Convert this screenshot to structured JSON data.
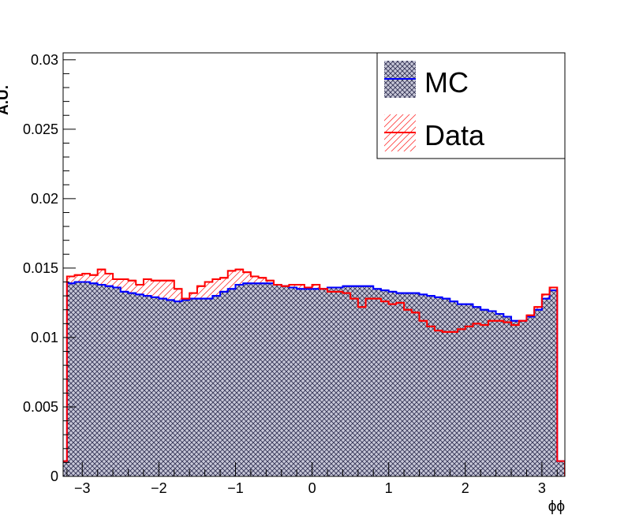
{
  "chart_data": {
    "type": "histogram",
    "xlabel": "ϕϕ",
    "ylabel": "A.U.",
    "xlim": [
      -3.25,
      3.3
    ],
    "ylim": [
      0,
      0.0305
    ],
    "x_ticks": [
      -3,
      -2,
      -1,
      0,
      1,
      2,
      3
    ],
    "x_tick_labels": [
      "−3",
      "−2",
      "−1",
      "0",
      "1",
      "2",
      "3"
    ],
    "y_ticks": [
      0,
      0.005,
      0.01,
      0.015,
      0.02,
      0.025,
      0.03
    ],
    "y_tick_labels": [
      "0",
      "0.005",
      "0.01",
      "0.015",
      "0.02",
      "0.025",
      "0.03"
    ],
    "bin_edges_range": [
      -3.2,
      3.2
    ],
    "n_bins": 64,
    "legend_position": "top-right",
    "series": [
      {
        "name": "MC",
        "color": "#0000ff",
        "fill": "crosshatch-gray",
        "values": [
          0.0139,
          0.014,
          0.014,
          0.0139,
          0.0138,
          0.0137,
          0.0136,
          0.0133,
          0.0132,
          0.0131,
          0.013,
          0.0129,
          0.0128,
          0.0127,
          0.0126,
          0.0127,
          0.0128,
          0.0128,
          0.0128,
          0.013,
          0.0133,
          0.0135,
          0.0138,
          0.0139,
          0.0139,
          0.0139,
          0.0139,
          0.0138,
          0.0137,
          0.0136,
          0.0135,
          0.0135,
          0.0135,
          0.0135,
          0.0136,
          0.0136,
          0.0137,
          0.0137,
          0.0137,
          0.0137,
          0.0135,
          0.0134,
          0.0133,
          0.0132,
          0.0132,
          0.0132,
          0.0131,
          0.013,
          0.0129,
          0.0128,
          0.0126,
          0.0124,
          0.0124,
          0.0122,
          0.012,
          0.0119,
          0.0117,
          0.0115,
          0.0112,
          0.0112,
          0.0115,
          0.012,
          0.0128,
          0.0134
        ]
      },
      {
        "name": "Data",
        "color": "#ff0000",
        "fill": "diagonal-red-hatch",
        "values": [
          0.0144,
          0.0145,
          0.0146,
          0.0145,
          0.0149,
          0.0146,
          0.0142,
          0.0142,
          0.0141,
          0.0138,
          0.0142,
          0.0141,
          0.0141,
          0.0141,
          0.0135,
          0.0128,
          0.0132,
          0.0137,
          0.014,
          0.0142,
          0.0143,
          0.0148,
          0.0149,
          0.0147,
          0.0144,
          0.0143,
          0.0141,
          0.0138,
          0.0137,
          0.0138,
          0.0138,
          0.0136,
          0.0138,
          0.0135,
          0.0133,
          0.0133,
          0.0132,
          0.0128,
          0.0122,
          0.0128,
          0.0128,
          0.0126,
          0.0124,
          0.0125,
          0.012,
          0.0118,
          0.0112,
          0.0108,
          0.0105,
          0.0104,
          0.0104,
          0.0106,
          0.0108,
          0.011,
          0.0109,
          0.0112,
          0.0112,
          0.0111,
          0.0109,
          0.0112,
          0.0116,
          0.0122,
          0.0131,
          0.0136
        ]
      }
    ],
    "edge_bins": {
      "left": {
        "x": [
          -3.3,
          -3.2
        ],
        "value": 0.0011
      },
      "right": {
        "x": [
          3.2,
          3.3
        ],
        "value": 0.0011
      }
    }
  }
}
